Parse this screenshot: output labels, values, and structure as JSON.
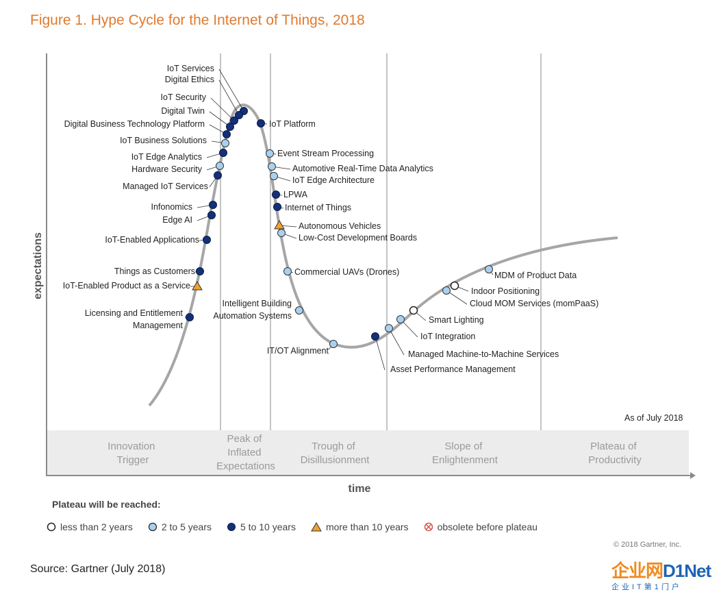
{
  "title": "Figure 1. Hype Cycle for the Internet of Things, 2018",
  "chart_data": {
    "type": "scatter",
    "ylabel": "expectations",
    "xlabel": "time",
    "as_of": "As of July 2018",
    "phases": [
      "Innovation Trigger",
      "Peak of Inflated Expectations",
      "Trough of Disillusionment",
      "Slope of Enlightenment",
      "Plateau of Productivity"
    ],
    "legend_title": "Plateau will be reached:",
    "categories": [
      {
        "key": "lt2",
        "label": "less than 2 years",
        "color": "#ffffff"
      },
      {
        "key": "2to5",
        "label": "2 to 5 years",
        "color": "#a9d0ef"
      },
      {
        "key": "5to10",
        "label": "5 to 10 years",
        "color": "#14307a"
      },
      {
        "key": "gt10",
        "label": "more than 10 years",
        "color": "#f0a030"
      },
      {
        "key": "obsolete",
        "label": "obsolete before plateau",
        "color": "#d9534f"
      }
    ],
    "points": [
      {
        "label": "IoT Services",
        "cat": "5to10"
      },
      {
        "label": "Digital Ethics",
        "cat": "5to10"
      },
      {
        "label": "IoT Security",
        "cat": "5to10"
      },
      {
        "label": "Digital Twin",
        "cat": "5to10"
      },
      {
        "label": "Digital Business Technology Platform",
        "cat": "5to10"
      },
      {
        "label": "IoT Business Solutions",
        "cat": "2to5"
      },
      {
        "label": "IoT Edge Analytics",
        "cat": "5to10"
      },
      {
        "label": "Hardware Security",
        "cat": "2to5"
      },
      {
        "label": "Managed IoT Services",
        "cat": "5to10"
      },
      {
        "label": "Infonomics",
        "cat": "5to10"
      },
      {
        "label": "Edge AI",
        "cat": "5to10"
      },
      {
        "label": "IoT-Enabled Applications",
        "cat": "5to10"
      },
      {
        "label": "Things as Customers",
        "cat": "5to10"
      },
      {
        "label": "IoT-Enabled Product as a Service",
        "cat": "gt10"
      },
      {
        "label": "Licensing and Entitlement Management",
        "cat": "5to10"
      },
      {
        "label": "IoT Platform",
        "cat": "5to10"
      },
      {
        "label": "Event Stream Processing",
        "cat": "2to5"
      },
      {
        "label": "Automotive Real-Time Data Analytics",
        "cat": "2to5"
      },
      {
        "label": "IoT Edge Architecture",
        "cat": "2to5"
      },
      {
        "label": "LPWA",
        "cat": "5to10"
      },
      {
        "label": "Internet of Things",
        "cat": "5to10"
      },
      {
        "label": "Autonomous Vehicles",
        "cat": "gt10"
      },
      {
        "label": "Low-Cost Development Boards",
        "cat": "2to5"
      },
      {
        "label": "Commercial UAVs (Drones)",
        "cat": "2to5"
      },
      {
        "label": "Intelligent Building Automation Systems",
        "cat": "2to5"
      },
      {
        "label": "IT/OT Alignment",
        "cat": "2to5"
      },
      {
        "label": "Asset Performance Management",
        "cat": "5to10"
      },
      {
        "label": "Managed Machine-to-Machine Services",
        "cat": "2to5"
      },
      {
        "label": "IoT Integration",
        "cat": "2to5"
      },
      {
        "label": "Smart Lighting",
        "cat": "lt2"
      },
      {
        "label": "Cloud MOM Services (momPaaS)",
        "cat": "2to5"
      },
      {
        "label": "Indoor Positioning",
        "cat": "lt2"
      },
      {
        "label": "MDM of Product Data",
        "cat": "2to5"
      }
    ]
  },
  "copyright": "© 2018 Gartner, Inc.",
  "source": "Source: Gartner (July 2018)",
  "watermark": {
    "main": "企业网",
    "brand": "D1Net",
    "sub": "企业IT第1门户"
  }
}
